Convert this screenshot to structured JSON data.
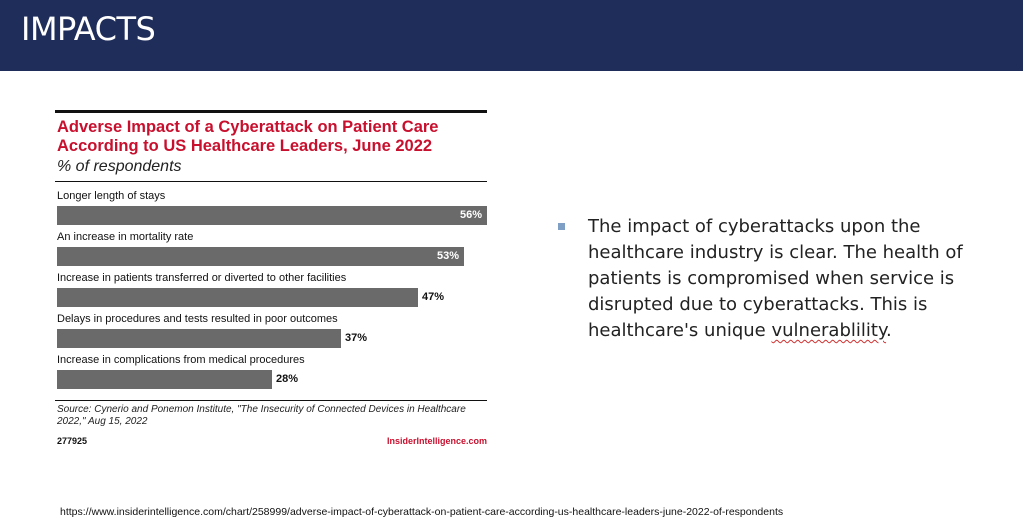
{
  "slide": {
    "title": "IMPACTS",
    "header_color": "#1f2d5a"
  },
  "chart_data": {
    "type": "bar",
    "orientation": "horizontal",
    "title": "Adverse Impact of a Cyberattack on Patient Care According to US Healthcare Leaders, June 2022",
    "subtitle": "% of respondents",
    "categories": [
      "Longer length of stays",
      "An increase in mortality rate",
      "Increase in patients transferred or diverted to other facilities",
      "Delays in procedures and tests resulted in poor outcomes",
      "Increase in complications from medical procedures"
    ],
    "values": [
      56,
      53,
      47,
      37,
      28
    ],
    "value_labels": [
      "56%",
      "53%",
      "47%",
      "37%",
      "28%"
    ],
    "xlim": [
      0,
      56
    ],
    "grid": false,
    "legend": "none",
    "bar_color": "#6a6a6a",
    "title_color": "#c8102e",
    "source": "Source: Cynerio and Ponemon Institute, \"The Insecurity of Connected Devices in Healthcare 2022,\" Aug 15, 2022",
    "chart_id": "277925",
    "brand": "InsiderIntelligence.com"
  },
  "bullet": {
    "text_before": "The impact of cyberattacks upon the healthcare industry is clear.  The health of patients is compromised when service is disrupted due to cyberattacks.  This is healthcare's unique ",
    "misspelled_word": "vulnerablility",
    "text_after": ".",
    "marker_color": "#7f9fc4"
  },
  "footer": {
    "url": "https://www.insiderintelligence.com/chart/258999/adverse-impact-of-cyberattack-on-patient-care-according-us-healthcare-leaders-june-2022-of-respondents"
  }
}
